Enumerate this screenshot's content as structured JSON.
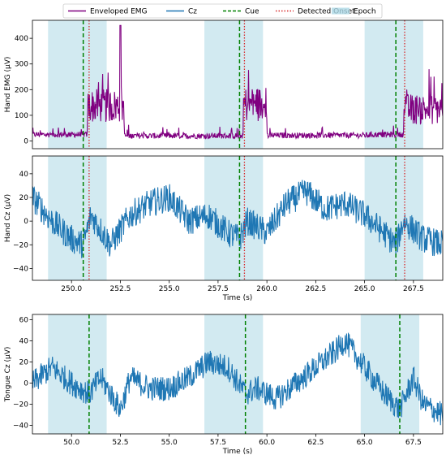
{
  "chart_data": [
    {
      "type": "line",
      "ylabel": "Hand EMG (μV)",
      "xlim": [
        248,
        269
      ],
      "ylim": [
        -30,
        470
      ],
      "yticks": [
        0,
        100,
        200,
        300,
        400
      ],
      "ytick_labels": [
        "0",
        "100",
        "200",
        "300",
        "400"
      ],
      "xtick_labels_visible": false,
      "epochs": [
        [
          248.8,
          251.8
        ],
        [
          256.8,
          259.8
        ],
        [
          265.0,
          268.0
        ]
      ],
      "cues": [
        250.6,
        258.6,
        266.6
      ],
      "onsets": [
        250.9,
        258.85,
        267.05
      ],
      "series": [
        {
          "name": "Enveloped EMG",
          "color": "#800080",
          "baseline": 20,
          "segments": [
            {
              "x": [
                248.0,
                250.8
              ],
              "level": 25
            },
            {
              "x": [
                250.8,
                252.7
              ],
              "level": 110,
              "peak": {
                "x": 252.5,
                "y": 450
              }
            },
            {
              "x": [
                252.7,
                258.8
              ],
              "level": 20
            },
            {
              "x": [
                258.8,
                260.0
              ],
              "level": 115
            },
            {
              "x": [
                260.0,
                265.2
              ],
              "level": 22
            },
            {
              "x": [
                265.2,
                267.0
              ],
              "level": 25
            },
            {
              "x": [
                267.0,
                269.0
              ],
              "level": 100
            }
          ]
        }
      ]
    },
    {
      "type": "line",
      "ylabel": "Hand Cz (μV)",
      "xlabel": "Time (s)",
      "xlim": [
        248,
        269
      ],
      "ylim": [
        -50,
        55
      ],
      "xticks": [
        250,
        252.5,
        255,
        257.5,
        260,
        262.5,
        265,
        267.5
      ],
      "xtick_labels": [
        "250.0",
        "252.5",
        "255.0",
        "257.5",
        "260.0",
        "262.5",
        "265.0",
        "267.5"
      ],
      "yticks": [
        -40,
        -20,
        0,
        20,
        40
      ],
      "ytick_labels": [
        "−40",
        "−20",
        "0",
        "20",
        "40"
      ],
      "epochs": [
        [
          248.8,
          251.8
        ],
        [
          256.8,
          259.8
        ],
        [
          265.0,
          268.0
        ]
      ],
      "cues": [
        250.6,
        258.6,
        266.6
      ],
      "onsets": [
        250.9,
        258.85,
        267.05
      ],
      "series": [
        {
          "name": "Cz",
          "color": "#1f77b4",
          "x": [
            248.0,
            249.0,
            250.0,
            250.6,
            251.0,
            252.0,
            253.0,
            254.0,
            255.0,
            256.0,
            257.0,
            258.0,
            258.6,
            259.0,
            260.0,
            261.0,
            262.0,
            263.0,
            264.0,
            265.0,
            266.0,
            266.6,
            267.0,
            268.0,
            269.0
          ],
          "y": [
            20,
            0,
            -15,
            -20,
            5,
            -20,
            5,
            15,
            20,
            0,
            5,
            -10,
            -15,
            0,
            -10,
            15,
            25,
            10,
            15,
            5,
            -10,
            -20,
            0,
            -15,
            -20
          ]
        }
      ]
    },
    {
      "type": "line",
      "ylabel": "Tongue Cz (μV)",
      "xlabel": "Time (s)",
      "xlim": [
        48,
        69
      ],
      "ylim": [
        -48,
        65
      ],
      "xticks": [
        50,
        52.5,
        55,
        57.5,
        60,
        62.5,
        65,
        67.5
      ],
      "xtick_labels": [
        "50.0",
        "52.5",
        "55.0",
        "57.5",
        "60.0",
        "62.5",
        "65.0",
        "67.5"
      ],
      "yticks": [
        -40,
        -20,
        0,
        20,
        40,
        60
      ],
      "ytick_labels": [
        "−40",
        "−20",
        "0",
        "20",
        "40",
        "60"
      ],
      "epochs": [
        [
          48.8,
          51.8
        ],
        [
          56.8,
          59.8
        ],
        [
          64.8,
          67.8
        ]
      ],
      "cues": [
        50.9,
        58.9,
        66.8
      ],
      "series": [
        {
          "name": "Cz",
          "color": "#1f77b4",
          "x": [
            48.0,
            49.0,
            50.0,
            50.9,
            51.5,
            52.5,
            53.0,
            54.0,
            55.0,
            56.0,
            57.0,
            58.0,
            58.9,
            59.5,
            60.5,
            61.5,
            62.5,
            63.5,
            64.0,
            65.0,
            66.0,
            66.8,
            67.5,
            68.0,
            69.0
          ],
          "y": [
            0,
            15,
            0,
            -10,
            5,
            -25,
            5,
            -5,
            -5,
            5,
            20,
            15,
            -10,
            -5,
            -15,
            0,
            15,
            30,
            40,
            15,
            -10,
            -25,
            5,
            -20,
            -30
          ]
        }
      ]
    }
  ],
  "legend": {
    "placement": "top-center",
    "items": [
      {
        "label": "Enveloped EMG",
        "kind": "line",
        "color": "#800080"
      },
      {
        "label": "Cz",
        "kind": "line",
        "color": "#1f77b4"
      },
      {
        "label": "Cue",
        "kind": "dashed",
        "color": "#008000"
      },
      {
        "label": "Detected Onset",
        "kind": "dotted",
        "color": "#d62728"
      },
      {
        "label": "Epoch",
        "kind": "patch",
        "color": "#add8e6"
      }
    ]
  }
}
